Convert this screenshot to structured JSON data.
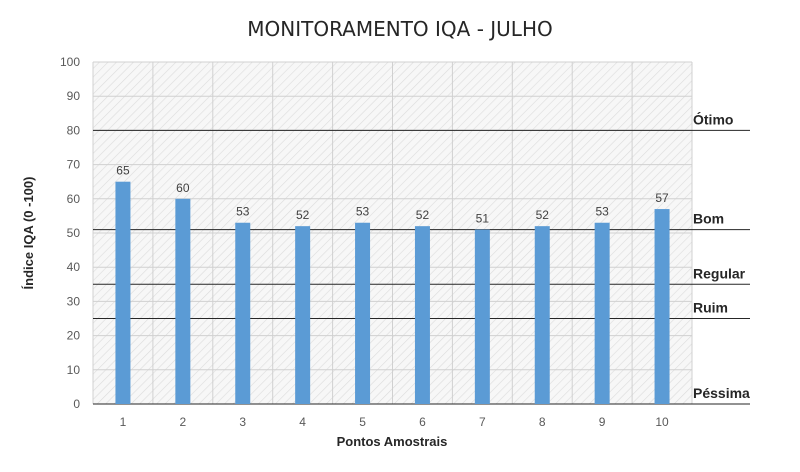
{
  "chart_data": {
    "type": "bar",
    "title": "MONITORAMENTO IQA - JULHO",
    "xlabel": "Pontos Amostrais",
    "ylabel": "Índice IQA (0 -100)",
    "categories": [
      "1",
      "2",
      "3",
      "4",
      "5",
      "6",
      "7",
      "8",
      "9",
      "10"
    ],
    "values": [
      65,
      60,
      53,
      52,
      53,
      52,
      51,
      52,
      53,
      57
    ],
    "ylim": [
      0,
      100
    ],
    "yticks": [
      0,
      10,
      20,
      30,
      40,
      50,
      60,
      70,
      80,
      90,
      100
    ],
    "grid": true,
    "bar_color": "#5b9bd5",
    "thresholds": [
      {
        "label": "Ótimo",
        "value": 80
      },
      {
        "label": "Bom",
        "value": 51
      },
      {
        "label": "Regular",
        "value": 35
      },
      {
        "label": "Ruim",
        "value": 25
      },
      {
        "label": "Péssima",
        "value": 0
      }
    ]
  }
}
